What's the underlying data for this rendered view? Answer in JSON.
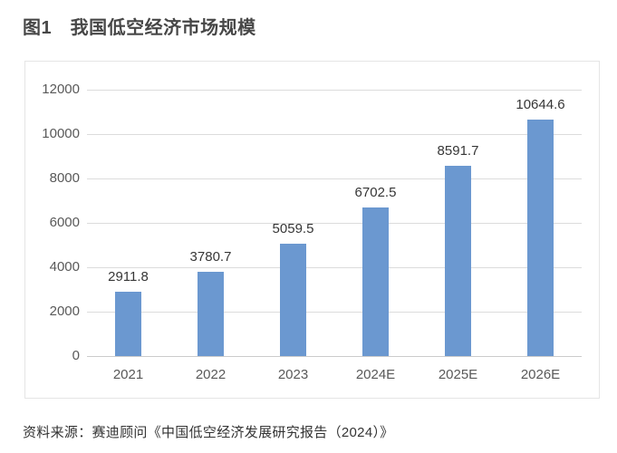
{
  "page": {
    "title": "图1　我国低空经济市场规模",
    "source": "资料来源：赛迪顾问《中国低空经济发展研究报告（2024）》"
  },
  "colors": {
    "bar": "#6B98D0",
    "gridline": "#dcdcdc",
    "axis_line": "#cccccc",
    "tick_label": "#595959",
    "value_label": "#363636",
    "title": "#474747",
    "card_border": "#e5e5e5",
    "background": "#ffffff"
  },
  "chart_data": {
    "type": "bar",
    "title": "图1　我国低空经济市场规模",
    "categories": [
      "2021",
      "2022",
      "2023",
      "2024E",
      "2025E",
      "2026E"
    ],
    "values": [
      2911.8,
      3780.7,
      5059.5,
      6702.5,
      8591.7,
      10644.6
    ],
    "value_labels": [
      "2911.8",
      "3780.7",
      "5059.5",
      "6702.5",
      "8591.7",
      "10644.6"
    ],
    "xlabel": "",
    "ylabel": "",
    "ylim": [
      0,
      12000
    ],
    "y_ticks": [
      0,
      2000,
      4000,
      6000,
      8000,
      10000,
      12000
    ],
    "grid": true,
    "legend": "none",
    "bar_color": "#6B98D0",
    "source": "资料来源：赛迪顾问《中国低空经济发展研究报告（2024）》"
  }
}
